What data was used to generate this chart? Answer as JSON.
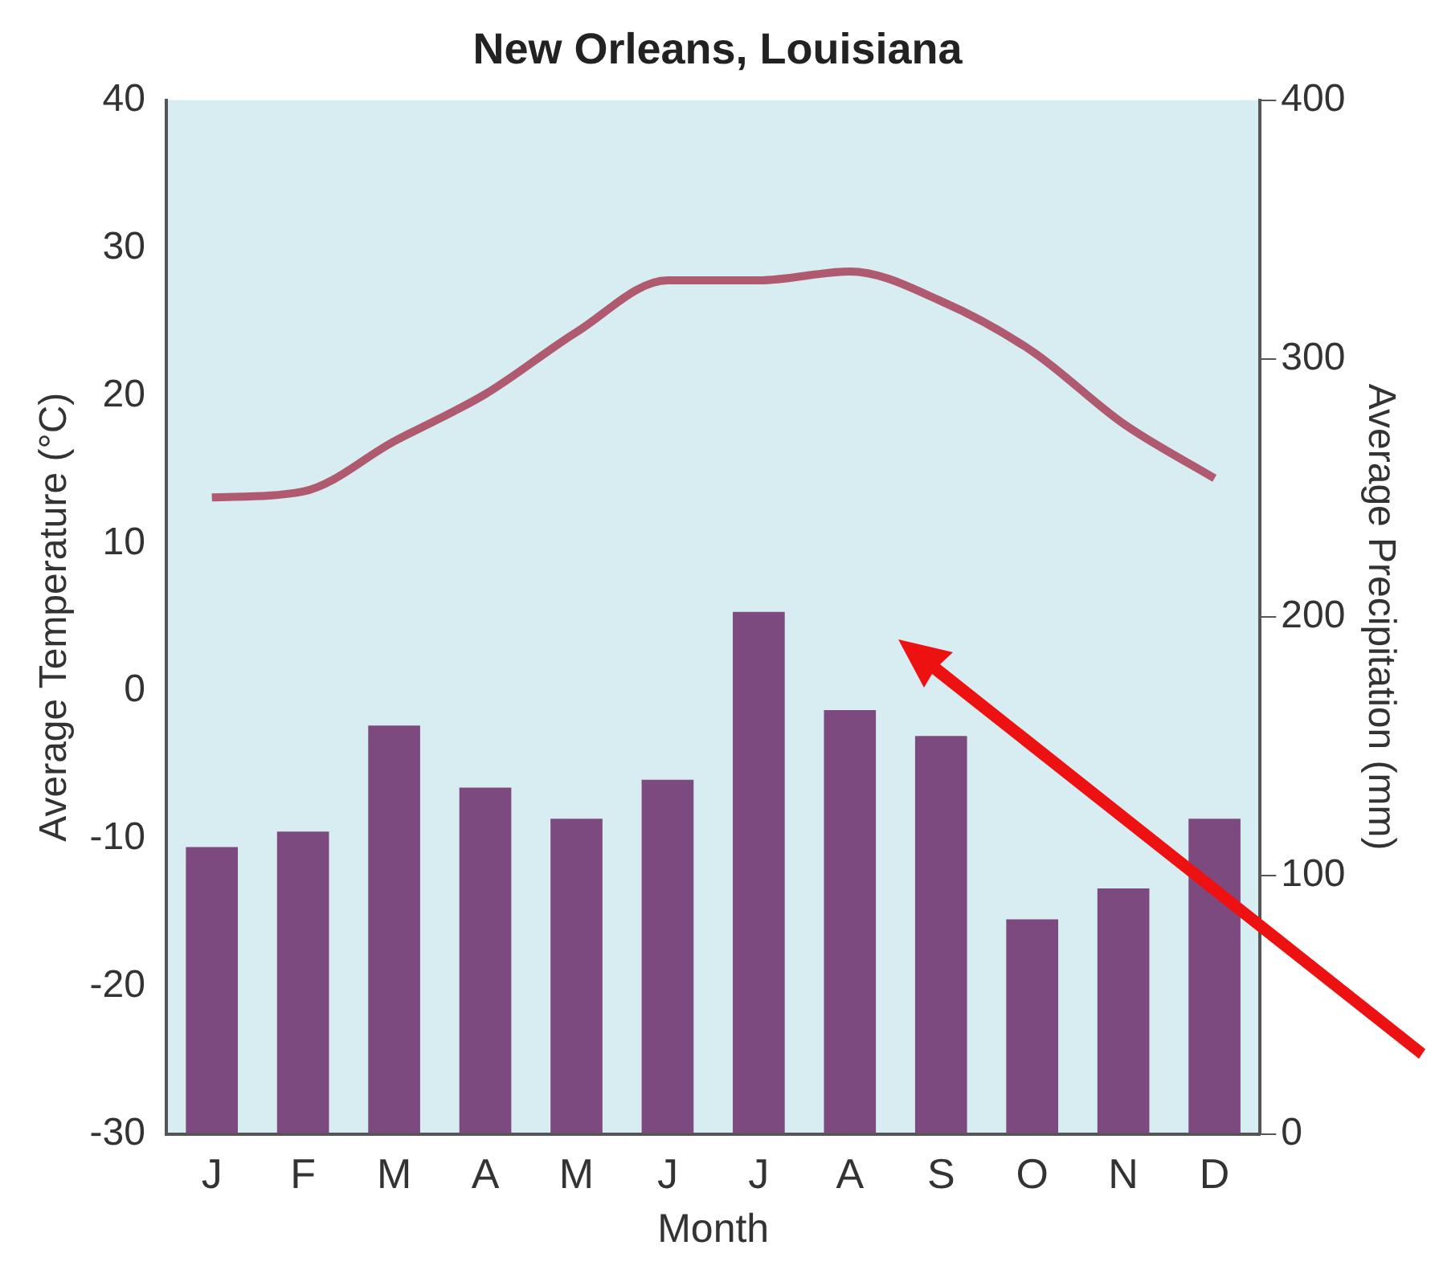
{
  "chart_data": {
    "type": "bar",
    "title": "New Orleans, Louisiana",
    "xlabel": "Month",
    "ylabel": "Average Temperature (°C)",
    "y2label": "Average Precipitation (mm)",
    "categories": [
      "J",
      "F",
      "M",
      "A",
      "M",
      "J",
      "J",
      "A",
      "S",
      "O",
      "N",
      "D"
    ],
    "series": [
      {
        "axis": "y2",
        "color": "#7d4a80",
        "values": [
          111,
          117,
          158,
          134,
          122,
          137,
          202,
          164,
          154,
          83,
          95,
          122
        ]
      },
      {
        "type": "line",
        "axis": "y",
        "color": "#b05a70",
        "values": [
          13.1,
          13.5,
          16.9,
          20.1,
          24.3,
          27.8,
          27.8,
          28.4,
          26.4,
          23.0,
          18.1,
          14.4
        ]
      }
    ],
    "ylim": [
      -30,
      40
    ],
    "yticks": [
      -30,
      -20,
      -10,
      0,
      10,
      20,
      30,
      40
    ],
    "y2lim": [
      0,
      400
    ],
    "y2ticks": [
      0,
      100,
      200,
      300,
      400
    ],
    "grid": false,
    "legend": false,
    "marker": "none"
  }
}
